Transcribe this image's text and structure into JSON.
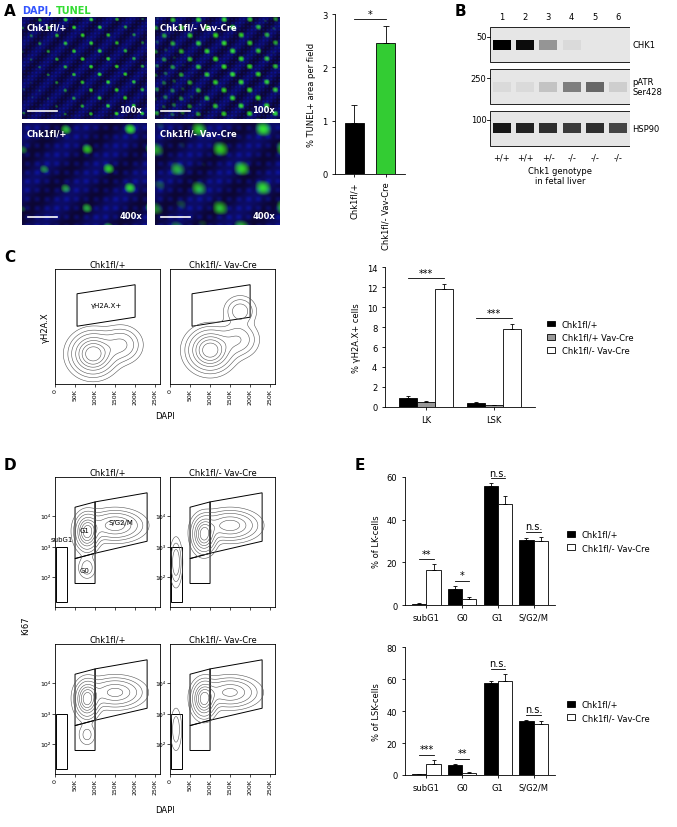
{
  "panel_labels": [
    "A",
    "B",
    "C",
    "D",
    "E"
  ],
  "panel_A_images": {
    "stain_labels": [
      {
        "text": "DAPI,",
        "color": "#3355ff"
      },
      {
        "text": "TUNEL",
        "color": "#33dd33"
      }
    ],
    "images": [
      {
        "genotype": "Chk1fl/+",
        "magnification": "100x"
      },
      {
        "genotype": "Chk1fl/- Vav-Cre",
        "magnification": "100x"
      },
      {
        "genotype": "Chk1fl/+",
        "magnification": "400x"
      },
      {
        "genotype": "Chk1fl/- Vav-Cre",
        "magnification": "400x"
      }
    ]
  },
  "panel_B_blot": {
    "lanes": [
      1,
      2,
      3,
      4,
      5,
      6
    ],
    "genotypes": [
      "+/+",
      "+/+",
      "+/-",
      "-/-",
      "-/-",
      "-/-"
    ],
    "xlabel": "Chk1 genotype\nin fetal liver",
    "rows": [
      {
        "label": "CHK1",
        "mw": 50,
        "intensity": [
          1.0,
          0.95,
          0.35,
          0.05,
          0.0,
          0.0
        ]
      },
      {
        "label": "pATR\nSer428",
        "mw": 250,
        "intensity": [
          0.05,
          0.05,
          0.15,
          0.45,
          0.55,
          0.1
        ]
      },
      {
        "label": "HSP90",
        "mw": 100,
        "intensity": [
          0.9,
          0.85,
          0.8,
          0.75,
          0.8,
          0.7
        ]
      }
    ]
  },
  "flow_C": {
    "xlabel": "DAPI",
    "ylabel": "γH2A.X",
    "xlim": [
      0,
      262144
    ],
    "xticks": [
      0,
      {
        "value": 50000,
        "label": "50K"
      },
      {
        "value": 100000,
        "label": "100K"
      },
      {
        "value": 150000,
        "label": "150K"
      },
      {
        "value": 200000,
        "label": "200K"
      },
      {
        "value": 250000,
        "label": "250K"
      }
    ],
    "ylim": [
      30,
      200000
    ],
    "yticks": [],
    "plots": [
      {
        "title": "Chk1fl/+",
        "populations": [
          {
            "x": 95000,
            "y": 300,
            "sx": 28000,
            "sy_decades": 0.35,
            "weight": 1.0
          },
          {
            "x": 165000,
            "y": 600,
            "sx": 25000,
            "sy_decades": 0.3,
            "weight": 0.35
          }
        ],
        "gates": [
          {
            "label": "γH2A.X+",
            "vertices": [
              [
                55000,
                2500
              ],
              [
                200000,
                5000
              ],
              [
                200000,
                60000
              ],
              [
                55000,
                30000
              ]
            ]
          }
        ]
      },
      {
        "title": "Chk1fl/- Vav-Cre",
        "populations": [
          {
            "x": 100000,
            "y": 400,
            "sx": 28000,
            "sy_decades": 0.35,
            "weight": 1.0
          },
          {
            "x": 170000,
            "y": 900,
            "sx": 25000,
            "sy_decades": 0.3,
            "weight": 0.3
          },
          {
            "x": 175000,
            "y": 8000,
            "sx": 20000,
            "sy_decades": 0.25,
            "weight": 0.25
          }
        ],
        "gates": [
          {
            "vertices": [
              [
                55000,
                2500
              ],
              [
                200000,
                5000
              ],
              [
                200000,
                60000
              ],
              [
                55000,
                30000
              ]
            ]
          }
        ]
      }
    ]
  },
  "flow_D": {
    "xlabel": "DAPI",
    "ylabel": "Ki67",
    "xlim": [
      0,
      262144
    ],
    "xticks": [
      0,
      {
        "value": 50000,
        "label": "50K"
      },
      {
        "value": 100000,
        "label": "100K"
      },
      {
        "value": 150000,
        "label": "150K"
      },
      {
        "value": 200000,
        "label": "200K"
      },
      {
        "value": 250000,
        "label": "250K"
      }
    ],
    "ylim": [
      10,
      200000
    ],
    "yticks": [
      {
        "value": 100,
        "label": "10²"
      },
      {
        "value": 1000,
        "label": "10³"
      },
      {
        "value": 10000,
        "label": "10⁴"
      }
    ],
    "plots": [
      {
        "title": "Chk1fl/+",
        "populations": [
          {
            "x": 80000,
            "y": 3000,
            "sx": 15000,
            "sy_decades": 0.3,
            "weight": 1.0
          },
          {
            "x": 150000,
            "y": 5000,
            "sx": 35000,
            "sy_decades": 0.25,
            "weight": 0.6
          },
          {
            "x": 80000,
            "y": 200,
            "sx": 12000,
            "sy_decades": 0.2,
            "weight": 0.15
          }
        ],
        "gates": [
          {
            "label": "subG1",
            "vertices": [
              [
                2000,
                15
              ],
              [
                30000,
                15
              ],
              [
                30000,
                1000
              ],
              [
                2000,
                1000
              ]
            ]
          },
          {
            "label": "G0",
            "vertices": [
              [
                50000,
                60
              ],
              [
                100000,
                60
              ],
              [
                100000,
                600
              ],
              [
                50000,
                400
              ]
            ]
          },
          {
            "label": "G1",
            "vertices": [
              [
                50000,
                400
              ],
              [
                100000,
                600
              ],
              [
                100000,
                30000
              ],
              [
                50000,
                20000
              ]
            ]
          },
          {
            "label": "S/G2/M",
            "vertices": [
              [
                100000,
                600
              ],
              [
                230000,
                1500
              ],
              [
                230000,
                60000
              ],
              [
                100000,
                30000
              ]
            ]
          }
        ]
      },
      {
        "title": "Chk1fl/- Vav-Cre",
        "populations": [
          {
            "x": 85000,
            "y": 2500,
            "sx": 15000,
            "sy_decades": 0.3,
            "weight": 1.0
          },
          {
            "x": 150000,
            "y": 5000,
            "sx": 35000,
            "sy_decades": 0.25,
            "weight": 0.6
          },
          {
            "x": 15000,
            "y": 300,
            "sx": 8000,
            "sy_decades": 0.4,
            "weight": 0.3
          }
        ],
        "gates": [
          {
            "vertices": [
              [
                2000,
                15
              ],
              [
                30000,
                15
              ],
              [
                30000,
                1000
              ],
              [
                2000,
                1000
              ]
            ]
          },
          {
            "vertices": [
              [
                50000,
                60
              ],
              [
                100000,
                60
              ],
              [
                100000,
                600
              ],
              [
                50000,
                400
              ]
            ]
          },
          {
            "vertices": [
              [
                50000,
                400
              ],
              [
                100000,
                600
              ],
              [
                100000,
                30000
              ],
              [
                50000,
                20000
              ]
            ]
          },
          {
            "vertices": [
              [
                100000,
                600
              ],
              [
                230000,
                1500
              ],
              [
                230000,
                60000
              ],
              [
                100000,
                30000
              ]
            ]
          }
        ]
      },
      {
        "title": "Chk1fl/+",
        "populations": [
          {
            "x": 80000,
            "y": 3000,
            "sx": 15000,
            "sy_decades": 0.3,
            "weight": 1.0
          },
          {
            "x": 150000,
            "y": 5000,
            "sx": 35000,
            "sy_decades": 0.25,
            "weight": 0.55
          },
          {
            "x": 80000,
            "y": 200,
            "sx": 12000,
            "sy_decades": 0.2,
            "weight": 0.12
          }
        ],
        "gates": [
          {
            "vertices": [
              [
                2000,
                15
              ],
              [
                30000,
                15
              ],
              [
                30000,
                1000
              ],
              [
                2000,
                1000
              ]
            ]
          },
          {
            "vertices": [
              [
                50000,
                60
              ],
              [
                100000,
                60
              ],
              [
                100000,
                600
              ],
              [
                50000,
                400
              ]
            ]
          },
          {
            "vertices": [
              [
                50000,
                400
              ],
              [
                100000,
                600
              ],
              [
                100000,
                30000
              ],
              [
                50000,
                20000
              ]
            ]
          },
          {
            "vertices": [
              [
                100000,
                600
              ],
              [
                230000,
                1500
              ],
              [
                230000,
                60000
              ],
              [
                100000,
                30000
              ]
            ]
          }
        ]
      },
      {
        "title": "Chk1fl/- Vav-Cre",
        "populations": [
          {
            "x": 85000,
            "y": 3000,
            "sx": 15000,
            "sy_decades": 0.3,
            "weight": 1.0
          },
          {
            "x": 150000,
            "y": 5000,
            "sx": 35000,
            "sy_decades": 0.25,
            "weight": 0.55
          },
          {
            "x": 15000,
            "y": 300,
            "sx": 8000,
            "sy_decades": 0.4,
            "weight": 0.15
          }
        ],
        "gates": [
          {
            "vertices": [
              [
                2000,
                15
              ],
              [
                30000,
                15
              ],
              [
                30000,
                1000
              ],
              [
                2000,
                1000
              ]
            ]
          },
          {
            "vertices": [
              [
                50000,
                60
              ],
              [
                100000,
                60
              ],
              [
                100000,
                600
              ],
              [
                50000,
                400
              ]
            ]
          },
          {
            "vertices": [
              [
                50000,
                400
              ],
              [
                100000,
                600
              ],
              [
                100000,
                30000
              ],
              [
                50000,
                20000
              ]
            ]
          },
          {
            "vertices": [
              [
                100000,
                600
              ],
              [
                230000,
                1500
              ],
              [
                230000,
                60000
              ],
              [
                100000,
                30000
              ]
            ]
          }
        ]
      }
    ]
  },
  "chart_data": [
    {
      "type": "bar",
      "ylabel": "% TUNEL+ area per field",
      "categories": [
        "Chk1fl/+",
        "Chk1fl/- Vav-Cre"
      ],
      "values": [
        0.95,
        2.45
      ],
      "errors": [
        0.35,
        0.33
      ],
      "colors": [
        "#000000",
        "#33cc33"
      ],
      "ylim": [
        0,
        3
      ],
      "yticks": [
        0,
        1,
        2,
        3
      ],
      "annotations": [
        {
          "text": "*"
        }
      ]
    },
    {
      "type": "bar",
      "ylabel": "% γH2A.X+ cells",
      "categories": [
        "LK",
        "LSK"
      ],
      "series": [
        {
          "name": "Chk1fl/+",
          "color": "#000000",
          "values": [
            0.9,
            0.4
          ],
          "errors": [
            0.2,
            0.1
          ]
        },
        {
          "name": "Chk1fl/+ Vav-Cre",
          "color": "#999999",
          "values": [
            0.5,
            0.2
          ],
          "errors": [
            0.15,
            0.05
          ]
        },
        {
          "name": "Chk1fl/- Vav-Cre",
          "color": "#ffffff",
          "values": [
            11.8,
            7.8
          ],
          "errors": [
            0.5,
            0.5
          ]
        }
      ],
      "ylim": [
        0,
        14
      ],
      "yticks": [
        0,
        2,
        4,
        6,
        8,
        10,
        12,
        14
      ],
      "legend": "right",
      "annotations": [
        {
          "category": "LK",
          "text": "***"
        },
        {
          "category": "LSK",
          "text": "***"
        }
      ]
    },
    {
      "type": "bar",
      "ylabel": "% of LK-cells",
      "categories": [
        "subG1",
        "G0",
        "G1",
        "S/G2/M"
      ],
      "series": [
        {
          "name": "Chk1fl/+",
          "color": "#000000",
          "values": [
            0.5,
            7.5,
            56,
            30.5
          ],
          "errors": [
            0.3,
            1.5,
            1,
            1
          ]
        },
        {
          "name": "Chk1fl/- Vav-Cre",
          "color": "#ffffff",
          "values": [
            16.5,
            3,
            47.5,
            30
          ],
          "errors": [
            2.5,
            0.8,
            3.5,
            2
          ]
        }
      ],
      "ylim": [
        0,
        60
      ],
      "yticks": [
        0,
        20,
        40,
        60
      ],
      "legend": "right",
      "annotations": [
        {
          "category": "subG1",
          "text": "**"
        },
        {
          "category": "G0",
          "text": "*"
        },
        {
          "category": "G1",
          "text": "n.s."
        },
        {
          "category": "S/G2/M",
          "text": "n.s."
        }
      ]
    },
    {
      "type": "bar",
      "ylabel": "% of LSK-cells",
      "categories": [
        "subG1",
        "G0",
        "G1",
        "S/G2/M"
      ],
      "series": [
        {
          "name": "Chk1fl/+",
          "color": "#000000",
          "values": [
            0.5,
            6,
            57.5,
            33.5
          ],
          "errors": [
            0.2,
            1,
            1.5,
            1
          ]
        },
        {
          "name": "Chk1fl/- Vav-Cre",
          "color": "#ffffff",
          "values": [
            7,
            1.5,
            59,
            32
          ],
          "errors": [
            2.5,
            0.5,
            4,
            1.5
          ]
        }
      ],
      "ylim": [
        0,
        80
      ],
      "yticks": [
        0,
        20,
        40,
        60,
        80
      ],
      "legend": "right",
      "annotations": [
        {
          "category": "subG1",
          "text": "***"
        },
        {
          "category": "G0",
          "text": "**"
        },
        {
          "category": "G1",
          "text": "n.s."
        },
        {
          "category": "S/G2/M",
          "text": "n.s."
        }
      ]
    }
  ]
}
